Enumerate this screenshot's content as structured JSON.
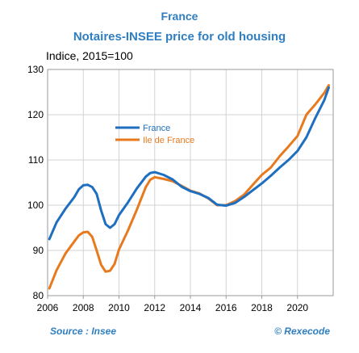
{
  "chart_data": {
    "type": "line",
    "title": "France",
    "subtitle": "Notaires-INSEE price for old housing",
    "ylabel": "Indice, 2015=100",
    "xlabel": "",
    "source": "Source : Insee",
    "credit": "© Rexecode",
    "xlim": [
      2006,
      2022
    ],
    "ylim": [
      80,
      130
    ],
    "x_ticks": [
      2006,
      2008,
      2010,
      2012,
      2014,
      2016,
      2018,
      2020
    ],
    "y_ticks": [
      80,
      90,
      100,
      110,
      120,
      130
    ],
    "grid": true,
    "legend": "center-left",
    "series": [
      {
        "name": "France",
        "color": "#1f6fc0",
        "points": [
          [
            2006.1,
            92.5
          ],
          [
            2006.5,
            96.2
          ],
          [
            2007.0,
            99.2
          ],
          [
            2007.5,
            101.8
          ],
          [
            2007.75,
            103.5
          ],
          [
            2008.0,
            104.4
          ],
          [
            2008.25,
            104.5
          ],
          [
            2008.5,
            104.0
          ],
          [
            2008.75,
            102.5
          ],
          [
            2009.0,
            98.8
          ],
          [
            2009.25,
            95.8
          ],
          [
            2009.5,
            95.0
          ],
          [
            2009.75,
            95.8
          ],
          [
            2010.0,
            97.8
          ],
          [
            2010.5,
            100.6
          ],
          [
            2011.0,
            103.7
          ],
          [
            2011.5,
            106.3
          ],
          [
            2011.75,
            107.1
          ],
          [
            2012.0,
            107.3
          ],
          [
            2012.5,
            106.7
          ],
          [
            2013.0,
            105.7
          ],
          [
            2013.5,
            104.1
          ],
          [
            2014.0,
            103.1
          ],
          [
            2014.5,
            102.5
          ],
          [
            2015.0,
            101.6
          ],
          [
            2015.5,
            100.1
          ],
          [
            2016.0,
            99.9
          ],
          [
            2016.5,
            100.5
          ],
          [
            2017.0,
            101.8
          ],
          [
            2017.5,
            103.3
          ],
          [
            2018.0,
            104.8
          ],
          [
            2018.5,
            106.5
          ],
          [
            2019.0,
            108.3
          ],
          [
            2019.5,
            110.0
          ],
          [
            2020.0,
            112.0
          ],
          [
            2020.5,
            115.0
          ],
          [
            2021.0,
            119.3
          ],
          [
            2021.5,
            123.2
          ],
          [
            2021.75,
            126.0
          ]
        ]
      },
      {
        "name": "Ile de France",
        "color": "#e87a1e",
        "points": [
          [
            2006.1,
            81.6
          ],
          [
            2006.5,
            85.6
          ],
          [
            2007.0,
            89.3
          ],
          [
            2007.5,
            92.0
          ],
          [
            2007.75,
            93.3
          ],
          [
            2008.0,
            94.0
          ],
          [
            2008.25,
            94.1
          ],
          [
            2008.5,
            93.0
          ],
          [
            2008.75,
            90.0
          ],
          [
            2009.0,
            86.8
          ],
          [
            2009.25,
            85.3
          ],
          [
            2009.5,
            85.5
          ],
          [
            2009.75,
            87.0
          ],
          [
            2010.0,
            90.2
          ],
          [
            2010.5,
            94.4
          ],
          [
            2011.0,
            99.0
          ],
          [
            2011.5,
            104.0
          ],
          [
            2011.75,
            105.6
          ],
          [
            2012.0,
            106.2
          ],
          [
            2012.5,
            105.8
          ],
          [
            2013.0,
            105.3
          ],
          [
            2013.5,
            104.3
          ],
          [
            2014.0,
            103.2
          ],
          [
            2014.5,
            102.6
          ],
          [
            2015.0,
            101.5
          ],
          [
            2015.5,
            100.0
          ],
          [
            2016.0,
            100.0
          ],
          [
            2016.5,
            100.9
          ],
          [
            2017.0,
            102.3
          ],
          [
            2017.5,
            104.5
          ],
          [
            2018.0,
            106.7
          ],
          [
            2018.5,
            108.3
          ],
          [
            2019.0,
            110.8
          ],
          [
            2019.5,
            113.0
          ],
          [
            2020.0,
            115.3
          ],
          [
            2020.5,
            120.0
          ],
          [
            2021.0,
            122.3
          ],
          [
            2021.5,
            124.8
          ],
          [
            2021.75,
            126.5
          ]
        ]
      }
    ]
  }
}
